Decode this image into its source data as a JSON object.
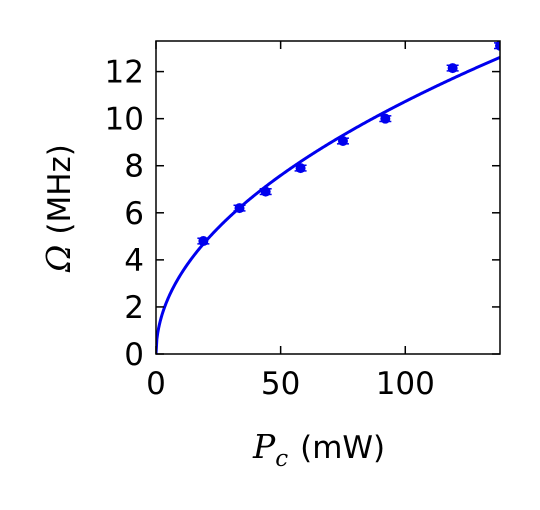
{
  "chart_data": {
    "type": "scatter",
    "xlabel": {
      "symbol": "P",
      "subscript": "c",
      "unit": "(mW)"
    },
    "ylabel": {
      "symbol": "Ω",
      "unit": "(MHz)"
    },
    "xlim": [
      0,
      138
    ],
    "ylim": [
      0,
      13.3
    ],
    "xticks": [
      0,
      50,
      100
    ],
    "xtick_labels": [
      "0",
      "50",
      "100"
    ],
    "yticks": [
      0,
      2,
      4,
      6,
      8,
      10,
      12
    ],
    "ytick_labels": [
      "0",
      "2",
      "4",
      "6",
      "8",
      "10",
      "12"
    ],
    "grid": false,
    "color": "#0000ee",
    "series": [
      {
        "kind": "points-with-errorbars",
        "points": [
          {
            "x": 19,
            "y": 4.8,
            "err": 0.12
          },
          {
            "x": 33.5,
            "y": 6.2,
            "err": 0.12
          },
          {
            "x": 44,
            "y": 6.9,
            "err": 0.12
          },
          {
            "x": 58,
            "y": 7.9,
            "err": 0.12
          },
          {
            "x": 75,
            "y": 9.05,
            "err": 0.12
          },
          {
            "x": 92,
            "y": 10.0,
            "err": 0.12
          },
          {
            "x": 119,
            "y": 12.15,
            "err": 0.12
          },
          {
            "x": 138,
            "y": 13.1,
            "err": 0.12
          }
        ]
      },
      {
        "kind": "fit-curve",
        "model": "y = a * sqrt(x)",
        "a": 1.073
      }
    ]
  }
}
